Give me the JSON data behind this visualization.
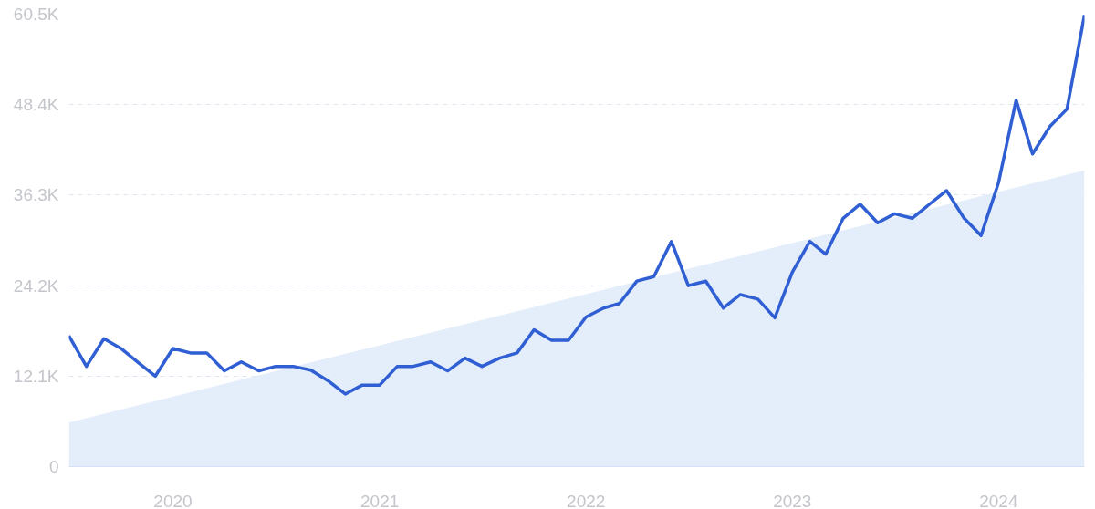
{
  "chart_data": {
    "type": "line",
    "x": [
      "2019-07",
      "2019-08",
      "2019-09",
      "2019-10",
      "2019-11",
      "2019-12",
      "2020-01",
      "2020-02",
      "2020-03",
      "2020-04",
      "2020-05",
      "2020-06",
      "2020-07",
      "2020-08",
      "2020-09",
      "2020-10",
      "2020-11",
      "2020-12",
      "2021-01",
      "2021-02",
      "2021-03",
      "2021-04",
      "2021-05",
      "2021-06",
      "2021-07",
      "2021-08",
      "2021-09",
      "2021-10",
      "2021-11",
      "2021-12",
      "2022-01",
      "2022-02",
      "2022-03",
      "2022-04",
      "2022-05",
      "2022-06",
      "2022-07",
      "2022-08",
      "2022-09",
      "2022-10",
      "2022-11",
      "2022-12",
      "2023-01",
      "2023-02",
      "2023-03",
      "2023-04",
      "2023-05",
      "2023-06",
      "2023-07",
      "2023-08",
      "2023-09",
      "2023-10",
      "2023-11",
      "2023-12",
      "2024-01",
      "2024-02",
      "2024-03",
      "2024-04",
      "2024-05",
      "2024-06"
    ],
    "series": [
      {
        "type": "area",
        "color": "#e4eefb",
        "x": [
          "2019-07",
          "2024-06"
        ],
        "values": [
          5900,
          39600
        ]
      },
      {
        "color": "#2f5fd3",
        "values": [
          17500,
          13400,
          17100,
          15800,
          13900,
          12100,
          15800,
          15200,
          15200,
          12800,
          14000,
          12800,
          13400,
          13400,
          12900,
          11500,
          9700,
          10900,
          10900,
          13400,
          13400,
          14000,
          12800,
          14500,
          13400,
          14500,
          15200,
          18300,
          16900,
          16900,
          20000,
          21200,
          21800,
          24800,
          25400,
          30100,
          24200,
          24800,
          21200,
          23000,
          22400,
          19900,
          26000,
          30100,
          28400,
          33200,
          35100,
          32600,
          33800,
          33200,
          35100,
          36900,
          33200,
          30900,
          38000,
          49000,
          41800,
          45500,
          47800,
          60400
        ]
      }
    ],
    "xlim": [
      "2019-07",
      "2024-06"
    ],
    "xticks": [
      "2020",
      "2021",
      "2022",
      "2023",
      "2024"
    ],
    "ylim": [
      0,
      60500
    ],
    "yticks": [
      0,
      {
        "value": 12100,
        "label": "12.1K"
      },
      {
        "value": 24200,
        "label": "24.2K"
      },
      {
        "value": 36300,
        "label": "36.3K"
      },
      {
        "value": 48400,
        "label": "48.4K"
      },
      {
        "value": 60500,
        "label": "60.5K"
      }
    ],
    "grid": "y",
    "line_style": "solid"
  }
}
